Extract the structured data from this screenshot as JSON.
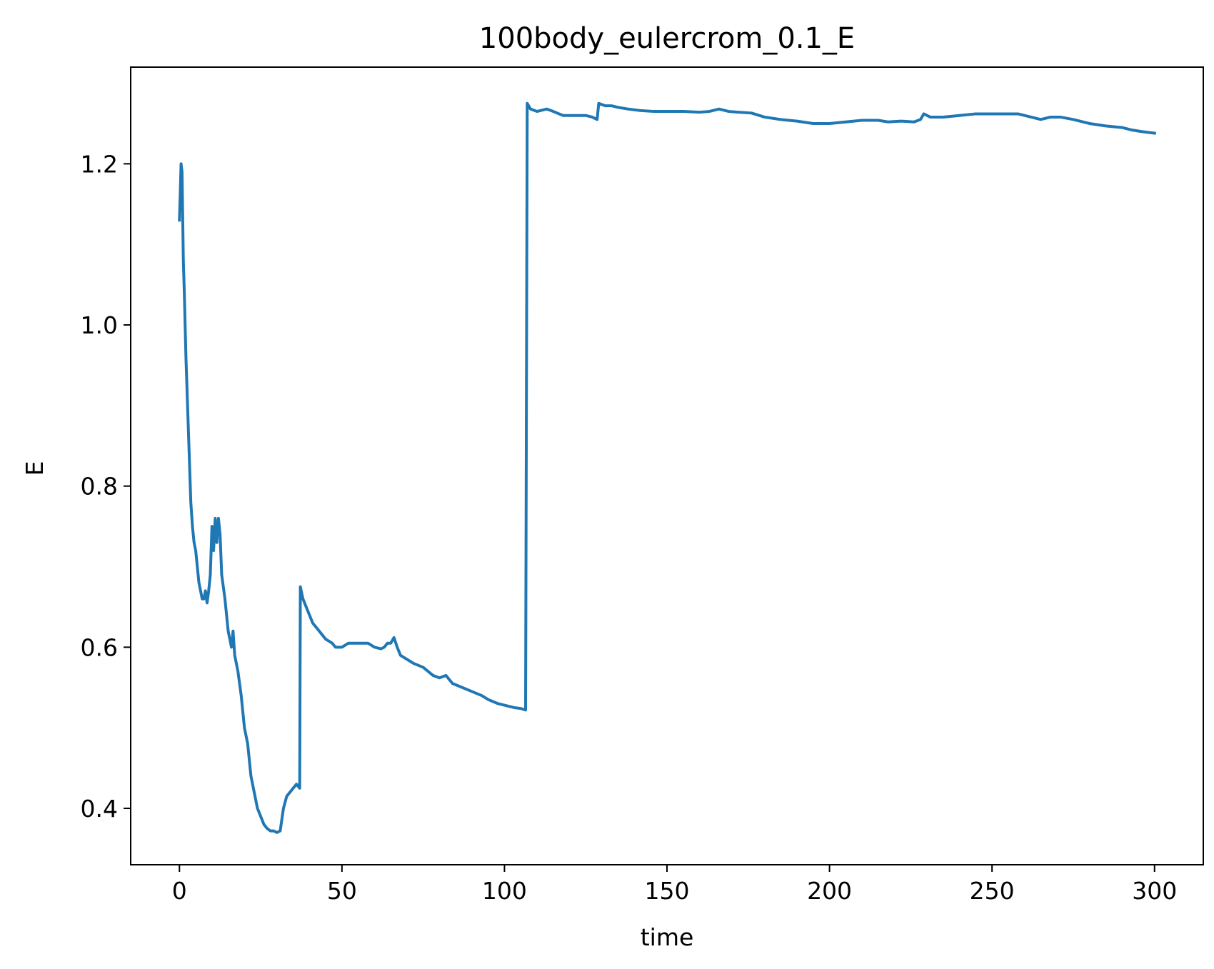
{
  "chart_data": {
    "type": "line",
    "title": "100body_eulercrom_0.1_E",
    "xlabel": "time",
    "ylabel": "E",
    "xlim": [
      -15,
      315
    ],
    "ylim": [
      0.33,
      1.32
    ],
    "xticks": [
      0,
      50,
      100,
      150,
      200,
      250,
      300
    ],
    "xtick_labels": [
      "0",
      "50",
      "100",
      "150",
      "200",
      "250",
      "300"
    ],
    "yticks": [
      0.4,
      0.6,
      0.8,
      1.0,
      1.2
    ],
    "ytick_labels": [
      "0.4",
      "0.6",
      "0.8",
      "1.0",
      "1.2"
    ],
    "grid": false,
    "series": [
      {
        "color": "#1f77b4",
        "points": [
          [
            0,
            1.13
          ],
          [
            0.3,
            1.17
          ],
          [
            0.5,
            1.2
          ],
          [
            0.8,
            1.19
          ],
          [
            1.2,
            1.08
          ],
          [
            1.5,
            1.04
          ],
          [
            2,
            0.96
          ],
          [
            2.5,
            0.9
          ],
          [
            3,
            0.84
          ],
          [
            3.5,
            0.78
          ],
          [
            4,
            0.75
          ],
          [
            4.5,
            0.73
          ],
          [
            5,
            0.72
          ],
          [
            5.5,
            0.7
          ],
          [
            6,
            0.68
          ],
          [
            6.5,
            0.67
          ],
          [
            7,
            0.66
          ],
          [
            7.5,
            0.66
          ],
          [
            8,
            0.67
          ],
          [
            8.5,
            0.655
          ],
          [
            9,
            0.67
          ],
          [
            9.5,
            0.69
          ],
          [
            10,
            0.75
          ],
          [
            10.5,
            0.72
          ],
          [
            11,
            0.76
          ],
          [
            11.5,
            0.73
          ],
          [
            12,
            0.76
          ],
          [
            12.5,
            0.74
          ],
          [
            13,
            0.69
          ],
          [
            14,
            0.66
          ],
          [
            15,
            0.62
          ],
          [
            16,
            0.6
          ],
          [
            16.5,
            0.62
          ],
          [
            17,
            0.59
          ],
          [
            18,
            0.57
          ],
          [
            19,
            0.54
          ],
          [
            20,
            0.5
          ],
          [
            21,
            0.48
          ],
          [
            22,
            0.44
          ],
          [
            23,
            0.42
          ],
          [
            24,
            0.4
          ],
          [
            25,
            0.39
          ],
          [
            26,
            0.38
          ],
          [
            27,
            0.375
          ],
          [
            28,
            0.372
          ],
          [
            29,
            0.372
          ],
          [
            30,
            0.37
          ],
          [
            31,
            0.372
          ],
          [
            32,
            0.4
          ],
          [
            33,
            0.415
          ],
          [
            34,
            0.42
          ],
          [
            35,
            0.425
          ],
          [
            36,
            0.43
          ],
          [
            37,
            0.425
          ],
          [
            37.2,
            0.675
          ],
          [
            38,
            0.66
          ],
          [
            39,
            0.65
          ],
          [
            40,
            0.64
          ],
          [
            41,
            0.63
          ],
          [
            43,
            0.62
          ],
          [
            44,
            0.615
          ],
          [
            45,
            0.61
          ],
          [
            47,
            0.605
          ],
          [
            48,
            0.6
          ],
          [
            50,
            0.6
          ],
          [
            52,
            0.605
          ],
          [
            55,
            0.605
          ],
          [
            58,
            0.605
          ],
          [
            60,
            0.6
          ],
          [
            62,
            0.598
          ],
          [
            63,
            0.6
          ],
          [
            64,
            0.605
          ],
          [
            65,
            0.605
          ],
          [
            66,
            0.612
          ],
          [
            67,
            0.6
          ],
          [
            68,
            0.59
          ],
          [
            70,
            0.585
          ],
          [
            72,
            0.58
          ],
          [
            75,
            0.575
          ],
          [
            78,
            0.565
          ],
          [
            80,
            0.562
          ],
          [
            82,
            0.565
          ],
          [
            84,
            0.555
          ],
          [
            87,
            0.55
          ],
          [
            90,
            0.545
          ],
          [
            93,
            0.54
          ],
          [
            95,
            0.535
          ],
          [
            98,
            0.53
          ],
          [
            100,
            0.528
          ],
          [
            103,
            0.525
          ],
          [
            105,
            0.524
          ],
          [
            106.5,
            0.522
          ],
          [
            107,
            1.275
          ],
          [
            108,
            1.268
          ],
          [
            110,
            1.265
          ],
          [
            113,
            1.268
          ],
          [
            115,
            1.265
          ],
          [
            118,
            1.26
          ],
          [
            120,
            1.26
          ],
          [
            122,
            1.26
          ],
          [
            125,
            1.26
          ],
          [
            127,
            1.258
          ],
          [
            128.5,
            1.255
          ],
          [
            129,
            1.275
          ],
          [
            131,
            1.272
          ],
          [
            133,
            1.272
          ],
          [
            135,
            1.27
          ],
          [
            138,
            1.268
          ],
          [
            142,
            1.266
          ],
          [
            146,
            1.265
          ],
          [
            150,
            1.265
          ],
          [
            155,
            1.265
          ],
          [
            160,
            1.264
          ],
          [
            163,
            1.265
          ],
          [
            166,
            1.268
          ],
          [
            169,
            1.265
          ],
          [
            172,
            1.264
          ],
          [
            176,
            1.263
          ],
          [
            180,
            1.258
          ],
          [
            185,
            1.255
          ],
          [
            190,
            1.253
          ],
          [
            195,
            1.25
          ],
          [
            200,
            1.25
          ],
          [
            205,
            1.252
          ],
          [
            210,
            1.254
          ],
          [
            215,
            1.254
          ],
          [
            218,
            1.252
          ],
          [
            222,
            1.253
          ],
          [
            226,
            1.252
          ],
          [
            228,
            1.255
          ],
          [
            229,
            1.262
          ],
          [
            231,
            1.258
          ],
          [
            235,
            1.258
          ],
          [
            240,
            1.26
          ],
          [
            245,
            1.262
          ],
          [
            250,
            1.262
          ],
          [
            255,
            1.262
          ],
          [
            258,
            1.262
          ],
          [
            262,
            1.258
          ],
          [
            265,
            1.255
          ],
          [
            268,
            1.258
          ],
          [
            271,
            1.258
          ],
          [
            275,
            1.255
          ],
          [
            280,
            1.25
          ],
          [
            285,
            1.247
          ],
          [
            290,
            1.245
          ],
          [
            293,
            1.242
          ],
          [
            296,
            1.24
          ],
          [
            300,
            1.238
          ]
        ]
      }
    ]
  }
}
